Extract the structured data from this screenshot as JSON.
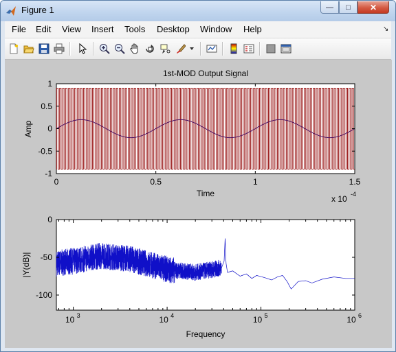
{
  "window": {
    "title": "Figure 1",
    "minimize_glyph": "—",
    "maximize_glyph": "□",
    "close_glyph": "✕"
  },
  "menu": [
    "File",
    "Edit",
    "View",
    "Insert",
    "Tools",
    "Desktop",
    "Window",
    "Help"
  ],
  "menu_overflow_glyph": "↘",
  "toolbar": [
    "new-figure-icon",
    "open-file-icon",
    "save-icon",
    "print-icon",
    "pointer-arrow-icon",
    "zoom-in-icon",
    "zoom-out-icon",
    "pan-hand-icon",
    "rotate-3d-icon",
    "data-cursor-icon",
    "brush-icon",
    "dropdown-arrow-icon",
    "link-plot-icon",
    "colorbar-icon",
    "legend-icon",
    "hide-plot-tools-icon",
    "show-plot-tools-icon"
  ],
  "colors": {
    "square_wave": "#9b1b1b",
    "sine": "#4a0f62",
    "spectrum": "#1010c8",
    "axes_bg": "#ffffff",
    "figure_bg": "#c8c8c8"
  },
  "chart_data": [
    {
      "type": "line",
      "title": "1st-MOD Output Signal",
      "xlabel": "Time",
      "ylabel": "Amp",
      "xlim": [
        0,
        0.00015
      ],
      "ylim": [
        -1,
        1
      ],
      "x_exponent_label": "x 10",
      "x_exponent_power": "-4",
      "xticks": [
        0,
        0.5,
        1,
        1.5
      ],
      "xtick_labels": [
        "0",
        "0.5",
        "1",
        "1.5"
      ],
      "yticks": [
        1,
        0.5,
        0,
        -0.5,
        -1
      ],
      "ytick_labels": [
        "1",
        "0.5",
        "0",
        "-0.5",
        "-1"
      ],
      "series": [
        {
          "kind": "square_wave",
          "high": 0.9,
          "low": -0.9,
          "pulses": 100
        },
        {
          "kind": "sine",
          "amplitude": 0.2,
          "period": 5e-05
        }
      ]
    },
    {
      "type": "line",
      "xlabel": "Frequency",
      "ylabel": "|Y(dB)|",
      "xscale": "log",
      "xlim": [
        660,
        1000000
      ],
      "ylim": [
        -120,
        0
      ],
      "xtick_labels": [
        "10",
        "10",
        "10",
        "10"
      ],
      "xtick_powers": [
        "3",
        "4",
        "5",
        "6"
      ],
      "xtick_values": [
        1000,
        10000,
        100000,
        1000000
      ],
      "yticks": [
        0,
        -50,
        -100
      ],
      "ytick_labels": [
        "0",
        "-50",
        "-100"
      ],
      "series": [
        {
          "kind": "spectrum",
          "noise_floor_points": [
            [
              660,
              -58
            ],
            [
              1000,
              -55
            ],
            [
              2000,
              -48
            ],
            [
              4000,
              -52
            ],
            [
              10000,
              -66
            ],
            [
              20000,
              -70
            ],
            [
              38000,
              -64
            ]
          ],
          "peak": [
            41500,
            -25
          ],
          "tail_points": [
            [
              44000,
              -70
            ],
            [
              50000,
              -68
            ],
            [
              60000,
              -75
            ],
            [
              70000,
              -72
            ],
            [
              80000,
              -78
            ],
            [
              90000,
              -74
            ],
            [
              110000,
              -77
            ],
            [
              130000,
              -80
            ],
            [
              150000,
              -76
            ],
            [
              170000,
              -74
            ],
            [
              190000,
              -82
            ],
            [
              210000,
              -92
            ],
            [
              250000,
              -82
            ],
            [
              300000,
              -81
            ],
            [
              350000,
              -84
            ],
            [
              450000,
              -79
            ],
            [
              600000,
              -76
            ],
            [
              800000,
              -78
            ],
            [
              1000000,
              -78
            ]
          ]
        }
      ]
    }
  ]
}
